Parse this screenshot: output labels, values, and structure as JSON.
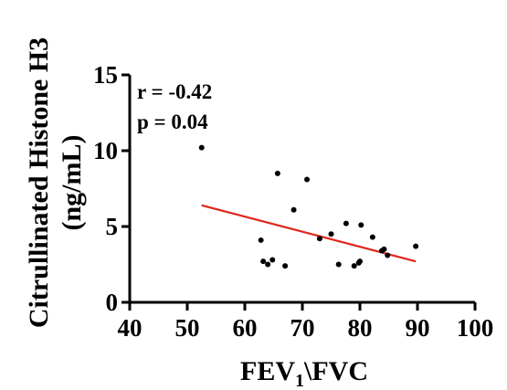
{
  "chart_data": {
    "type": "scatter",
    "title": "",
    "xlabel": {
      "prefix": "FEV",
      "subscript": "1",
      "suffix": "\\FVC"
    },
    "ylabel": [
      "Citrullinated Histone H3",
      "(ng/mL)"
    ],
    "xlim": [
      40,
      100
    ],
    "ylim": [
      0,
      15
    ],
    "x_ticks": [
      40,
      50,
      60,
      70,
      80,
      90,
      100
    ],
    "y_ticks": [
      0,
      5,
      10,
      15
    ],
    "grid": false,
    "annotations": {
      "r": "r = -0.42",
      "p": "p = 0.04"
    },
    "points": [
      {
        "x": 52.5,
        "y": 10.2
      },
      {
        "x": 62.8,
        "y": 4.1
      },
      {
        "x": 63.2,
        "y": 2.7
      },
      {
        "x": 64.0,
        "y": 2.5
      },
      {
        "x": 64.8,
        "y": 2.8
      },
      {
        "x": 65.7,
        "y": 8.5
      },
      {
        "x": 67.0,
        "y": 2.4
      },
      {
        "x": 68.5,
        "y": 6.1
      },
      {
        "x": 70.8,
        "y": 8.1
      },
      {
        "x": 73.0,
        "y": 4.2
      },
      {
        "x": 75.0,
        "y": 4.5
      },
      {
        "x": 76.3,
        "y": 2.5
      },
      {
        "x": 77.6,
        "y": 5.2
      },
      {
        "x": 79.0,
        "y": 2.4
      },
      {
        "x": 79.8,
        "y": 2.6
      },
      {
        "x": 80.0,
        "y": 2.7
      },
      {
        "x": 80.2,
        "y": 5.1
      },
      {
        "x": 82.2,
        "y": 4.3
      },
      {
        "x": 83.8,
        "y": 3.4
      },
      {
        "x": 84.2,
        "y": 3.5
      },
      {
        "x": 84.8,
        "y": 3.1
      },
      {
        "x": 89.7,
        "y": 3.7
      }
    ],
    "regression": {
      "color": "#e0251b",
      "start": {
        "x": 52.5,
        "y": 6.4
      },
      "end": {
        "x": 89.7,
        "y": 2.7
      }
    }
  }
}
